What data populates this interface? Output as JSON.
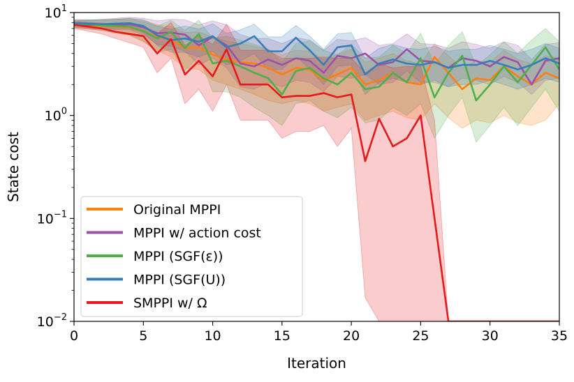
{
  "chart_data": {
    "type": "line",
    "title": "",
    "xlabel": "Iteration",
    "ylabel": "State cost",
    "yscale": "log",
    "xlim": [
      0,
      35
    ],
    "ylim": [
      0.01,
      10
    ],
    "x": [
      0,
      1,
      2,
      3,
      4,
      5,
      6,
      7,
      8,
      9,
      10,
      11,
      12,
      13,
      14,
      15,
      16,
      17,
      18,
      19,
      20,
      21,
      22,
      23,
      24,
      25,
      26,
      27,
      28,
      29,
      30,
      31,
      32,
      33,
      34,
      35
    ],
    "x_ticks": [
      {
        "value": 0,
        "label": "0"
      },
      {
        "value": 5,
        "label": "5"
      },
      {
        "value": 10,
        "label": "10"
      },
      {
        "value": 15,
        "label": "15"
      },
      {
        "value": 20,
        "label": "20"
      },
      {
        "value": 25,
        "label": "25"
      },
      {
        "value": 30,
        "label": "30"
      },
      {
        "value": 35,
        "label": "35"
      }
    ],
    "y_ticks": [
      {
        "value": 10,
        "base": "10",
        "exp": "1"
      },
      {
        "value": 1,
        "base": "10",
        "exp": "0"
      },
      {
        "value": 0.1,
        "base": "10",
        "exp": "−1"
      },
      {
        "value": 0.01,
        "base": "10",
        "exp": "−2"
      }
    ],
    "legend_position": "lower-left",
    "series": [
      {
        "name": "Original MPPI",
        "color": "#ff7f0e",
        "values": [
          7.6,
          7.5,
          7.4,
          7.3,
          7.2,
          6.6,
          5.8,
          5.5,
          4.5,
          4.6,
          3.9,
          3.5,
          3.3,
          3.2,
          2.9,
          2.5,
          2.9,
          2.8,
          2.2,
          2.5,
          2.9,
          2.0,
          2.2,
          2.6,
          2.1,
          2.0,
          3.7,
          2.6,
          1.8,
          2.3,
          2.2,
          3.0,
          2.4,
          2.0,
          2.6,
          2.3
        ],
        "lower": [
          7.0,
          6.9,
          6.7,
          6.3,
          6.0,
          5.2,
          4.3,
          3.7,
          2.9,
          2.8,
          2.2,
          2.0,
          1.8,
          1.6,
          1.4,
          1.3,
          1.4,
          1.3,
          1.1,
          1.2,
          1.3,
          0.9,
          1.0,
          1.1,
          0.95,
          0.9,
          1.3,
          0.95,
          0.75,
          0.9,
          0.85,
          1.0,
          0.85,
          0.8,
          0.9,
          1.3
        ],
        "upper": [
          8.4,
          8.4,
          8.5,
          8.6,
          8.8,
          8.4,
          7.6,
          7.3,
          6.4,
          6.5,
          5.8,
          5.3,
          5.0,
          4.7,
          4.4,
          3.9,
          4.3,
          4.2,
          3.5,
          3.9,
          4.4,
          3.3,
          3.6,
          4.0,
          3.4,
          3.2,
          5.0,
          3.8,
          2.9,
          3.4,
          3.3,
          4.3,
          3.5,
          3.2,
          3.8,
          3.6
        ]
      },
      {
        "name": "MPPI w/ action cost",
        "color": "#9c50a8",
        "values": [
          7.7,
          7.6,
          7.6,
          7.6,
          7.7,
          7.2,
          6.3,
          6.4,
          6.1,
          4.8,
          5.8,
          4.8,
          3.2,
          3.0,
          3.5,
          3.1,
          3.6,
          3.4,
          2.6,
          3.8,
          3.6,
          4.0,
          3.1,
          3.3,
          4.4,
          3.4,
          3.3,
          2.9,
          3.6,
          3.4,
          3.0,
          3.7,
          3.3,
          2.0,
          3.4,
          3.6
        ],
        "lower": [
          7.2,
          7.0,
          6.9,
          6.8,
          6.8,
          6.1,
          4.9,
          4.7,
          4.2,
          3.1,
          3.6,
          2.9,
          1.9,
          1.8,
          2.1,
          1.9,
          2.2,
          2.1,
          1.7,
          2.4,
          2.3,
          2.5,
          2.0,
          2.1,
          2.7,
          2.1,
          2.1,
          1.9,
          2.3,
          2.2,
          2.0,
          2.4,
          2.1,
          1.6,
          2.2,
          2.3
        ],
        "upper": [
          8.3,
          8.4,
          8.6,
          8.8,
          9.0,
          8.8,
          8.3,
          8.6,
          8.5,
          7.6,
          8.3,
          7.6,
          6.1,
          5.6,
          5.6,
          5.0,
          5.7,
          5.4,
          4.3,
          5.5,
          5.3,
          5.7,
          4.8,
          5.0,
          6.2,
          5.0,
          4.9,
          4.5,
          5.2,
          4.9,
          4.5,
          5.2,
          4.8,
          3.5,
          4.9,
          5.1
        ]
      },
      {
        "name": "MPPI (SGF(ε))",
        "color": "#4daf4a",
        "values": [
          7.8,
          7.7,
          7.5,
          7.4,
          7.3,
          6.6,
          5.6,
          6.5,
          4.5,
          6.2,
          3.2,
          3.4,
          3.0,
          2.6,
          2.3,
          1.6,
          2.7,
          2.9,
          2.3,
          2.0,
          2.6,
          1.8,
          1.9,
          2.6,
          2.1,
          3.6,
          1.5,
          2.6,
          3.8,
          1.4,
          2.0,
          3.0,
          2.1,
          3.1,
          4.6,
          2.8
        ],
        "lower": [
          7.2,
          7.0,
          6.7,
          6.4,
          6.1,
          5.3,
          4.1,
          4.4,
          2.7,
          3.8,
          1.7,
          1.7,
          1.5,
          1.2,
          1.0,
          0.8,
          1.3,
          1.4,
          1.1,
          0.95,
          1.2,
          0.85,
          0.9,
          1.2,
          1.0,
          1.3,
          0.6,
          1.0,
          1.5,
          0.55,
          0.8,
          1.2,
          0.8,
          1.2,
          1.8,
          1.1
        ],
        "upper": [
          8.5,
          8.5,
          8.4,
          8.5,
          8.6,
          8.1,
          7.4,
          8.4,
          6.7,
          8.4,
          5.6,
          5.9,
          5.4,
          4.9,
          4.4,
          3.3,
          5.0,
          5.3,
          4.3,
          3.9,
          4.9,
          3.6,
          3.7,
          4.8,
          4.0,
          6.3,
          3.1,
          4.8,
          6.5,
          3.0,
          3.9,
          5.2,
          4.0,
          5.4,
          7.0,
          5.2
        ]
      },
      {
        "name": "MPPI (SGF(U))",
        "color": "#377eb8",
        "values": [
          7.9,
          7.8,
          7.7,
          7.8,
          7.9,
          7.4,
          6.0,
          5.4,
          5.6,
          5.2,
          5.9,
          4.6,
          5.0,
          5.9,
          4.2,
          4.2,
          5.7,
          4.3,
          3.1,
          4.6,
          4.8,
          2.5,
          3.2,
          3.5,
          3.2,
          3.1,
          3.3,
          2.9,
          3.1,
          3.1,
          3.4,
          3.1,
          2.8,
          3.1,
          3.6,
          3.2
        ],
        "lower": [
          7.4,
          7.2,
          7.0,
          7.0,
          7.0,
          6.4,
          4.8,
          4.1,
          4.1,
          3.7,
          4.2,
          3.1,
          3.4,
          4.0,
          2.8,
          2.8,
          3.8,
          2.8,
          2.0,
          3.0,
          3.1,
          1.6,
          2.1,
          2.3,
          2.1,
          2.0,
          2.2,
          1.9,
          2.0,
          2.0,
          2.2,
          2.0,
          1.8,
          2.0,
          2.3,
          2.1
        ],
        "upper": [
          8.5,
          8.5,
          8.5,
          8.6,
          8.8,
          8.5,
          7.4,
          6.9,
          7.4,
          6.9,
          7.8,
          6.3,
          6.8,
          7.7,
          5.8,
          5.8,
          7.5,
          5.9,
          4.4,
          6.2,
          6.4,
          3.6,
          4.5,
          4.9,
          4.5,
          4.4,
          4.7,
          4.2,
          4.4,
          4.4,
          4.8,
          4.4,
          4.0,
          4.4,
          5.0,
          4.5
        ]
      },
      {
        "name": "SMPPI w/ Ω",
        "color": "#e41a1c",
        "values": [
          7.6,
          7.3,
          7.0,
          6.5,
          6.2,
          5.9,
          4.0,
          5.5,
          2.5,
          3.4,
          2.4,
          4.4,
          2.0,
          2.0,
          2.0,
          1.5,
          1.55,
          1.55,
          1.65,
          1.5,
          1.6,
          0.36,
          0.93,
          0.5,
          0.6,
          1.0,
          0.1,
          0.01,
          0.01,
          0.01,
          0.01,
          0.01,
          0.01,
          0.01,
          0.01,
          0.01
        ],
        "lower": [
          7.0,
          6.6,
          6.2,
          5.6,
          5.1,
          4.6,
          2.6,
          3.6,
          1.3,
          1.8,
          1.1,
          2.0,
          0.9,
          0.9,
          0.9,
          0.6,
          0.7,
          0.7,
          0.8,
          0.5,
          0.75,
          0.017,
          0.01,
          0.01,
          0.01,
          0.01,
          0.01,
          0.01,
          0.01,
          0.01,
          0.01,
          0.01,
          0.01,
          0.01,
          0.01,
          0.01
        ],
        "upper": [
          8.2,
          8.0,
          7.9,
          7.6,
          7.5,
          7.5,
          6.2,
          8.0,
          4.8,
          5.9,
          4.9,
          7.7,
          4.3,
          4.3,
          4.3,
          3.6,
          3.6,
          3.6,
          3.7,
          3.6,
          3.6,
          2.6,
          3.2,
          2.9,
          3.0,
          3.0,
          0.9,
          0.01,
          0.01,
          0.01,
          0.01,
          0.01,
          0.01,
          0.01,
          0.01,
          0.01
        ]
      }
    ]
  }
}
